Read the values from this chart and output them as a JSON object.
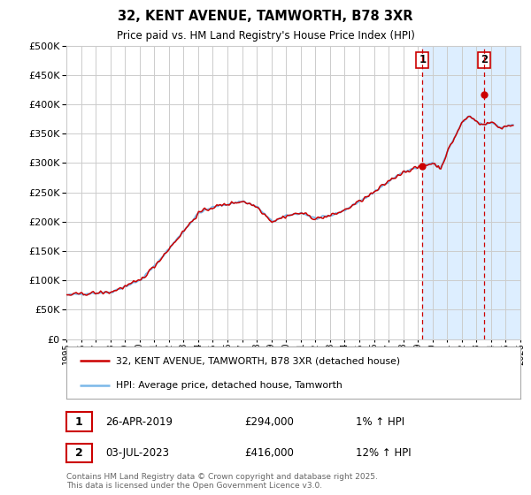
{
  "title": "32, KENT AVENUE, TAMWORTH, B78 3XR",
  "subtitle": "Price paid vs. HM Land Registry's House Price Index (HPI)",
  "legend_line1": "32, KENT AVENUE, TAMWORTH, B78 3XR (detached house)",
  "legend_line2": "HPI: Average price, detached house, Tamworth",
  "annotation1_date": "26-APR-2019",
  "annotation1_price": "£294,000",
  "annotation1_hpi": "1% ↑ HPI",
  "annotation2_date": "03-JUL-2023",
  "annotation2_price": "£416,000",
  "annotation2_hpi": "12% ↑ HPI",
  "footer": "Contains HM Land Registry data © Crown copyright and database right 2025.\nThis data is licensed under the Open Government Licence v3.0.",
  "ylim": [
    0,
    500000
  ],
  "yticks": [
    0,
    50000,
    100000,
    150000,
    200000,
    250000,
    300000,
    350000,
    400000,
    450000,
    500000
  ],
  "hpi_color": "#7ab8e8",
  "sale_color": "#cc0000",
  "vline_color": "#cc0000",
  "shade_color": "#ddeeff",
  "grid_color": "#cccccc",
  "bg_color": "#ffffff",
  "sale1_x": 2019.32,
  "sale1_y": 294000,
  "sale2_x": 2023.51,
  "sale2_y": 416000,
  "xmin": 1995,
  "xmax": 2026
}
